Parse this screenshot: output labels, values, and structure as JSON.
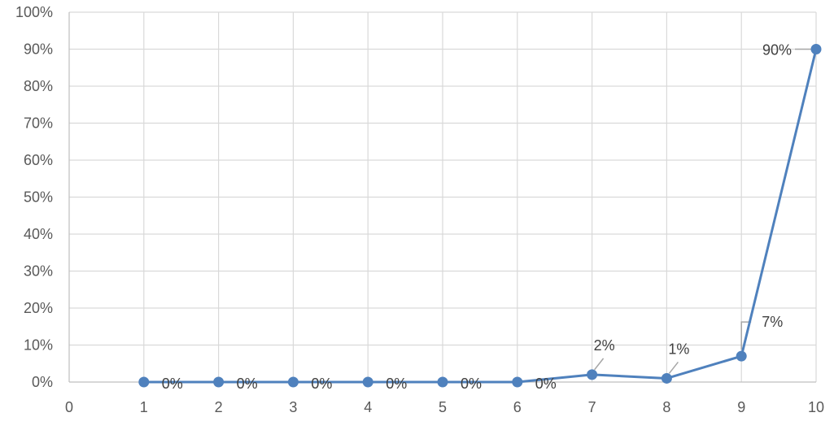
{
  "chart_data": {
    "type": "scatter",
    "title": "",
    "xlabel": "",
    "ylabel": "",
    "xlim": [
      0,
      10
    ],
    "ylim": [
      0,
      100
    ],
    "x_ticks": [
      "0",
      "1",
      "2",
      "3",
      "4",
      "5",
      "6",
      "7",
      "8",
      "9",
      "10"
    ],
    "y_ticks": [
      "0%",
      "10%",
      "20%",
      "30%",
      "40%",
      "50%",
      "60%",
      "70%",
      "80%",
      "90%",
      "100%"
    ],
    "grid": true,
    "legend": "none",
    "series": [
      {
        "x": [
          1,
          2,
          3,
          4,
          5,
          6,
          7,
          8,
          9,
          10
        ],
        "values": [
          0,
          0,
          0,
          0,
          0,
          0,
          2,
          1,
          7,
          90
        ],
        "labels": [
          "0%",
          "0%",
          "0%",
          "0%",
          "0%",
          "0%",
          "2%",
          "1%",
          "7%",
          "90%"
        ],
        "color": "#4f81bd"
      }
    ]
  }
}
